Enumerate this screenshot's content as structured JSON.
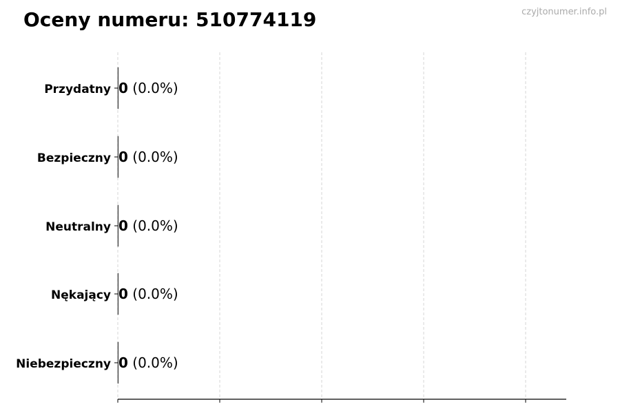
{
  "title": "Oceny numeru: 510774119",
  "watermark": "czyjtonumer.info.pl",
  "chart_data": {
    "type": "bar",
    "orientation": "horizontal",
    "title": "Oceny numeru: 510774119",
    "categories": [
      "Przydatny",
      "Bezpieczny",
      "Neutralny",
      "Nękający",
      "Niebezpieczny"
    ],
    "values": [
      0,
      0,
      0,
      0,
      0
    ],
    "data_labels": [
      {
        "count": "0",
        "percent": "(0.0%)"
      },
      {
        "count": "0",
        "percent": "(0.0%)"
      },
      {
        "count": "0",
        "percent": "(0.0%)"
      },
      {
        "count": "0",
        "percent": "(0.0%)"
      },
      {
        "count": "0",
        "percent": "(0.0%)"
      }
    ],
    "xlabel": "",
    "ylabel": "",
    "x_ticks_count": 5,
    "x_tick_labels_shown": false,
    "grid": "vertical dashed",
    "legend": "none",
    "colors": {
      "grid": "#cccccc",
      "axis": "#000000",
      "bar_edge": "#333333"
    }
  }
}
